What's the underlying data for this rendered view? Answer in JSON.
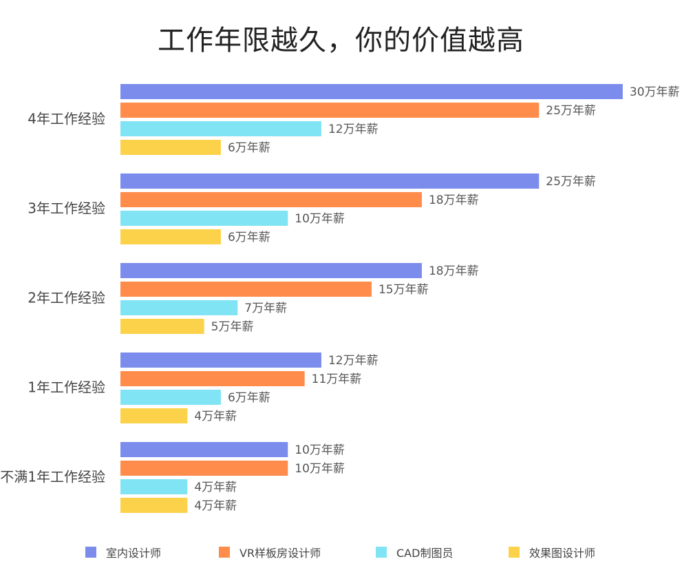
{
  "chart_data": {
    "type": "bar",
    "orientation": "horizontal",
    "title": "工作年限越久，你的价值越高",
    "categories": [
      "4年工作经验",
      "3年工作经验",
      "2年工作经验",
      "1年工作经验",
      "不满1年工作经验"
    ],
    "value_suffix": "万年薪",
    "xlim": [
      0,
      30
    ],
    "grid": false,
    "legend_position": "bottom",
    "series": [
      {
        "name": "室内设计师",
        "color": "#7b8ced",
        "values": [
          30,
          25,
          18,
          12,
          10
        ]
      },
      {
        "name": "VR样板房设计师",
        "color": "#ff8c4a",
        "values": [
          25,
          18,
          15,
          11,
          10
        ]
      },
      {
        "name": "CAD制图员",
        "color": "#80e4f4",
        "values": [
          12,
          10,
          7,
          6,
          4
        ]
      },
      {
        "name": "效果图设计师",
        "color": "#fcd24b",
        "values": [
          6,
          6,
          5,
          4,
          4
        ]
      }
    ]
  }
}
